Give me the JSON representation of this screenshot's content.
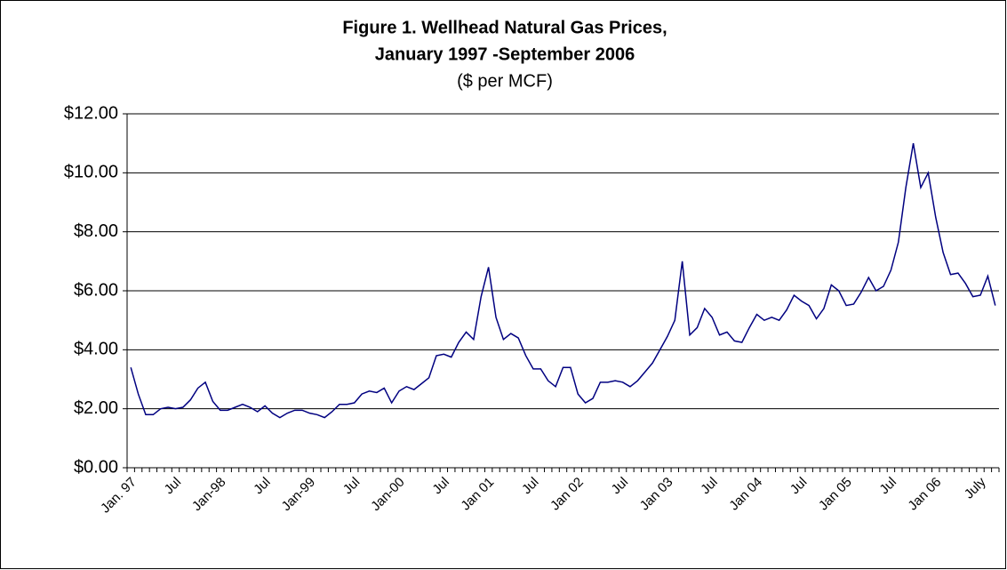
{
  "chart_data": {
    "type": "line",
    "title": [
      "Figure 1. Wellhead Natural Gas Prices,",
      "January 1997 -September 2006"
    ],
    "subtitle": "($ per MCF)",
    "categories": [
      "Jan. 97",
      null,
      null,
      null,
      null,
      null,
      "Jul",
      null,
      null,
      null,
      null,
      null,
      "Jan-98",
      null,
      null,
      null,
      null,
      null,
      "Jul",
      null,
      null,
      null,
      null,
      null,
      "Jan-99",
      null,
      null,
      null,
      null,
      null,
      "Jul",
      null,
      null,
      null,
      null,
      null,
      "Jan-00",
      null,
      null,
      null,
      null,
      null,
      "Jul",
      null,
      null,
      null,
      null,
      null,
      "Jan 01",
      null,
      null,
      null,
      null,
      null,
      "Jul",
      null,
      null,
      null,
      null,
      null,
      "Jan 02",
      null,
      null,
      null,
      null,
      null,
      "Jul",
      null,
      null,
      null,
      null,
      null,
      "Jan 03",
      null,
      null,
      null,
      null,
      null,
      "Jul",
      null,
      null,
      null,
      null,
      null,
      "Jan 04",
      null,
      null,
      null,
      null,
      null,
      "Jul",
      null,
      null,
      null,
      null,
      null,
      "Jan 05",
      null,
      null,
      null,
      null,
      null,
      "Jul",
      null,
      null,
      null,
      null,
      null,
      "Jan 06",
      null,
      null,
      null,
      null,
      null,
      "July",
      null,
      null
    ],
    "values": [
      3.4,
      2.5,
      1.8,
      1.8,
      2.0,
      2.05,
      2.0,
      2.05,
      2.3,
      2.7,
      2.9,
      2.25,
      1.95,
      1.95,
      2.05,
      2.15,
      2.05,
      1.9,
      2.1,
      1.85,
      1.7,
      1.85,
      1.95,
      1.95,
      1.85,
      1.8,
      1.7,
      1.9,
      2.15,
      2.15,
      2.2,
      2.5,
      2.6,
      2.55,
      2.7,
      2.2,
      2.6,
      2.75,
      2.65,
      2.85,
      3.05,
      3.8,
      3.85,
      3.75,
      4.25,
      4.6,
      4.35,
      5.8,
      6.8,
      5.1,
      4.35,
      4.55,
      4.4,
      3.8,
      3.35,
      3.35,
      2.95,
      2.75,
      3.4,
      3.4,
      2.5,
      2.2,
      2.35,
      2.9,
      2.9,
      2.95,
      2.9,
      2.75,
      2.95,
      3.25,
      3.55,
      4.0,
      4.45,
      5.0,
      7.0,
      4.5,
      4.75,
      5.4,
      5.1,
      4.5,
      4.6,
      4.3,
      4.25,
      4.75,
      5.2,
      5.0,
      5.1,
      5.0,
      5.35,
      5.85,
      5.65,
      5.5,
      5.05,
      5.4,
      6.2,
      6.0,
      5.5,
      5.55,
      5.95,
      6.45,
      6.0,
      6.15,
      6.7,
      7.65,
      9.5,
      11.0,
      9.5,
      10.0,
      8.5,
      7.3,
      6.55,
      6.6,
      6.25,
      5.8,
      5.85,
      6.5,
      5.5
    ],
    "color": "#000080",
    "ylim": [
      0,
      12
    ],
    "yticks": [
      {
        "value": 0,
        "label": "$0.00"
      },
      {
        "value": 2,
        "label": "$2.00"
      },
      {
        "value": 4,
        "label": "$4.00"
      },
      {
        "value": 6,
        "label": "$6.00"
      },
      {
        "value": 8,
        "label": "$8.00"
      },
      {
        "value": 10,
        "label": "$10.00"
      },
      {
        "value": 12,
        "label": "$12.00"
      }
    ],
    "grid": true
  }
}
